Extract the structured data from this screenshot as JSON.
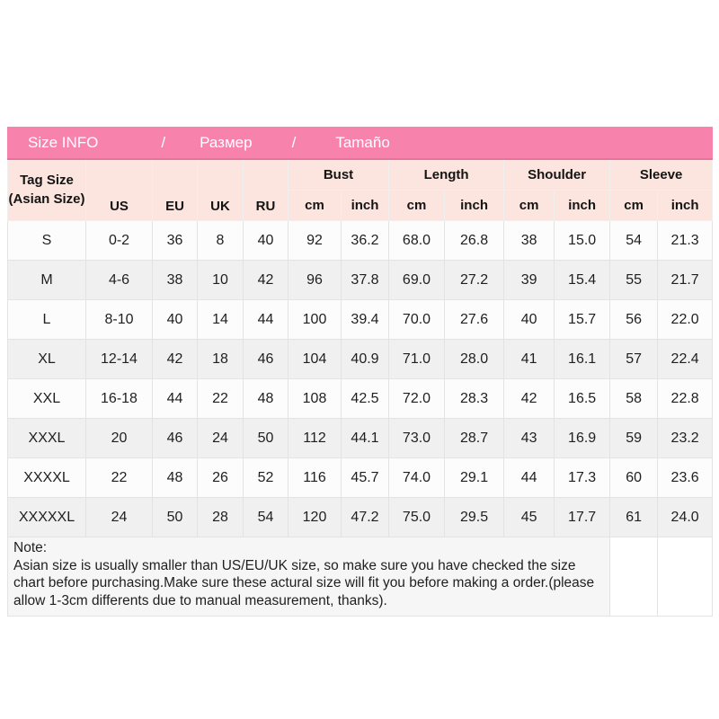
{
  "band": {
    "parts": [
      "Size INFO",
      "/",
      "Размер",
      "/",
      "Tamaño"
    ]
  },
  "header": {
    "tag_size_line1": "Tag Size",
    "tag_size_line2": "(Asian Size)",
    "size_columns": [
      "US",
      "EU",
      "UK",
      "RU"
    ],
    "measure_groups": [
      "Bust",
      "Length",
      "Shoulder",
      "Sleeve"
    ],
    "units": [
      "cm",
      "inch",
      "cm",
      "inch",
      "cm",
      "inch",
      "cm",
      "inch"
    ]
  },
  "note": {
    "title": "Note:",
    "body": "Asian size is usually smaller than US/EU/UK size, so make sure you have checked the size chart before purchasing.Make sure these actural size will fit you before making a order.(please allow 1-3cm differents due to manual measurement, thanks)."
  },
  "colors": {
    "band_pink": "#f783ad",
    "header_peach": "#fce5de",
    "row_alt_gray": "#f0f0f0",
    "row_white": "#fcfcfc"
  },
  "chart_data": {
    "type": "table",
    "title": "Size INFO / Размер / Tamaño",
    "columns": [
      "Tag Size (Asian Size)",
      "US",
      "EU",
      "UK",
      "RU",
      "Bust cm",
      "Bust inch",
      "Length cm",
      "Length inch",
      "Shoulder cm",
      "Shoulder inch",
      "Sleeve cm",
      "Sleeve inch"
    ],
    "rows": [
      [
        "S",
        "0-2",
        "36",
        "8",
        "40",
        "92",
        "36.2",
        "68.0",
        "26.8",
        "38",
        "15.0",
        "54",
        "21.3"
      ],
      [
        "M",
        "4-6",
        "38",
        "10",
        "42",
        "96",
        "37.8",
        "69.0",
        "27.2",
        "39",
        "15.4",
        "55",
        "21.7"
      ],
      [
        "L",
        "8-10",
        "40",
        "14",
        "44",
        "100",
        "39.4",
        "70.0",
        "27.6",
        "40",
        "15.7",
        "56",
        "22.0"
      ],
      [
        "XL",
        "12-14",
        "42",
        "18",
        "46",
        "104",
        "40.9",
        "71.0",
        "28.0",
        "41",
        "16.1",
        "57",
        "22.4"
      ],
      [
        "XXL",
        "16-18",
        "44",
        "22",
        "48",
        "108",
        "42.5",
        "72.0",
        "28.3",
        "42",
        "16.5",
        "58",
        "22.8"
      ],
      [
        "XXXL",
        "20",
        "46",
        "24",
        "50",
        "112",
        "44.1",
        "73.0",
        "28.7",
        "43",
        "16.9",
        "59",
        "23.2"
      ],
      [
        "XXXXL",
        "22",
        "48",
        "26",
        "52",
        "116",
        "45.7",
        "74.0",
        "29.1",
        "44",
        "17.3",
        "60",
        "23.6"
      ],
      [
        "XXXXXL",
        "24",
        "50",
        "28",
        "54",
        "120",
        "47.2",
        "75.0",
        "29.5",
        "45",
        "17.7",
        "61",
        "24.0"
      ]
    ]
  }
}
